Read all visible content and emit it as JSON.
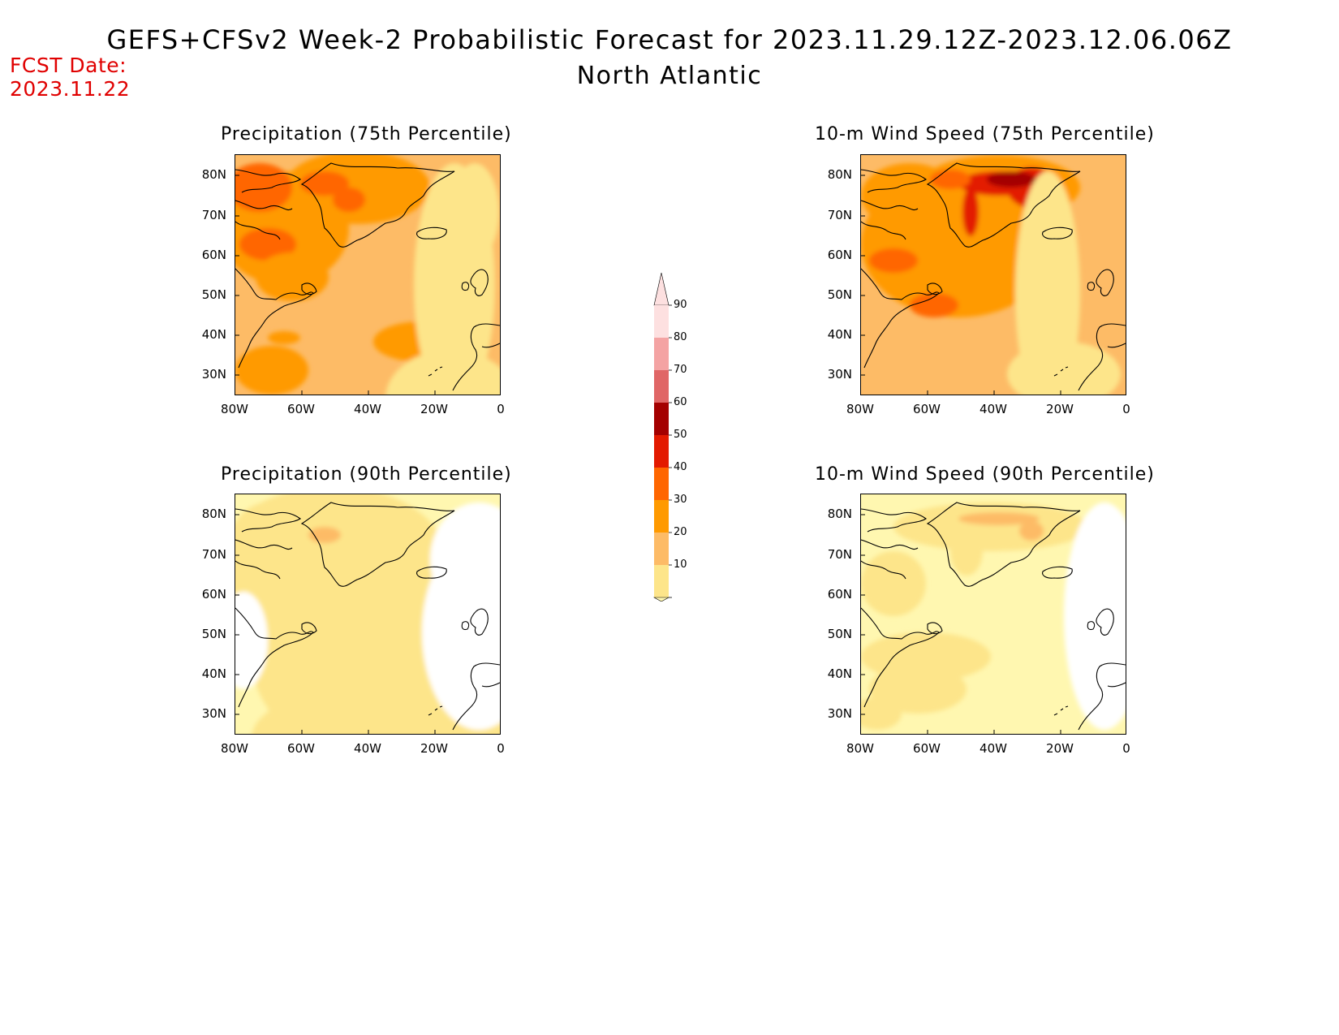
{
  "header": {
    "title": "GEFS+CFSv2 Week-2 Probabilistic Forecast for 2023.11.29.12Z-2023.12.06.06Z",
    "region": "North Atlantic",
    "fcst_date_label": "FCST Date:",
    "fcst_date_value": "2023.11.22"
  },
  "panels": [
    {
      "id": "precip-75",
      "title": "Precipitation (75th Percentile)",
      "intensity": "high"
    },
    {
      "id": "wind-75",
      "title": "10-m Wind Speed (75th Percentile)",
      "intensity": "very-high"
    },
    {
      "id": "precip-90",
      "title": "Precipitation (90th Percentile)",
      "intensity": "low"
    },
    {
      "id": "wind-90",
      "title": "10-m Wind Speed (90th Percentile)",
      "intensity": "low"
    }
  ],
  "axes": {
    "lat_labels": [
      "80N",
      "70N",
      "60N",
      "50N",
      "40N",
      "30N"
    ],
    "lon_labels": [
      "80W",
      "60W",
      "40W",
      "20W",
      "0"
    ]
  },
  "colorbar": {
    "levels": [
      "10",
      "20",
      "30",
      "40",
      "50",
      "60",
      "70",
      "80",
      "90"
    ],
    "colors": [
      "#fff7b0",
      "#fde58a",
      "#fdbb66",
      "#ff9a00",
      "#ff6600",
      "#e31a00",
      "#a40000",
      "#e06666",
      "#f4a3a3",
      "#fde0e0"
    ]
  }
}
